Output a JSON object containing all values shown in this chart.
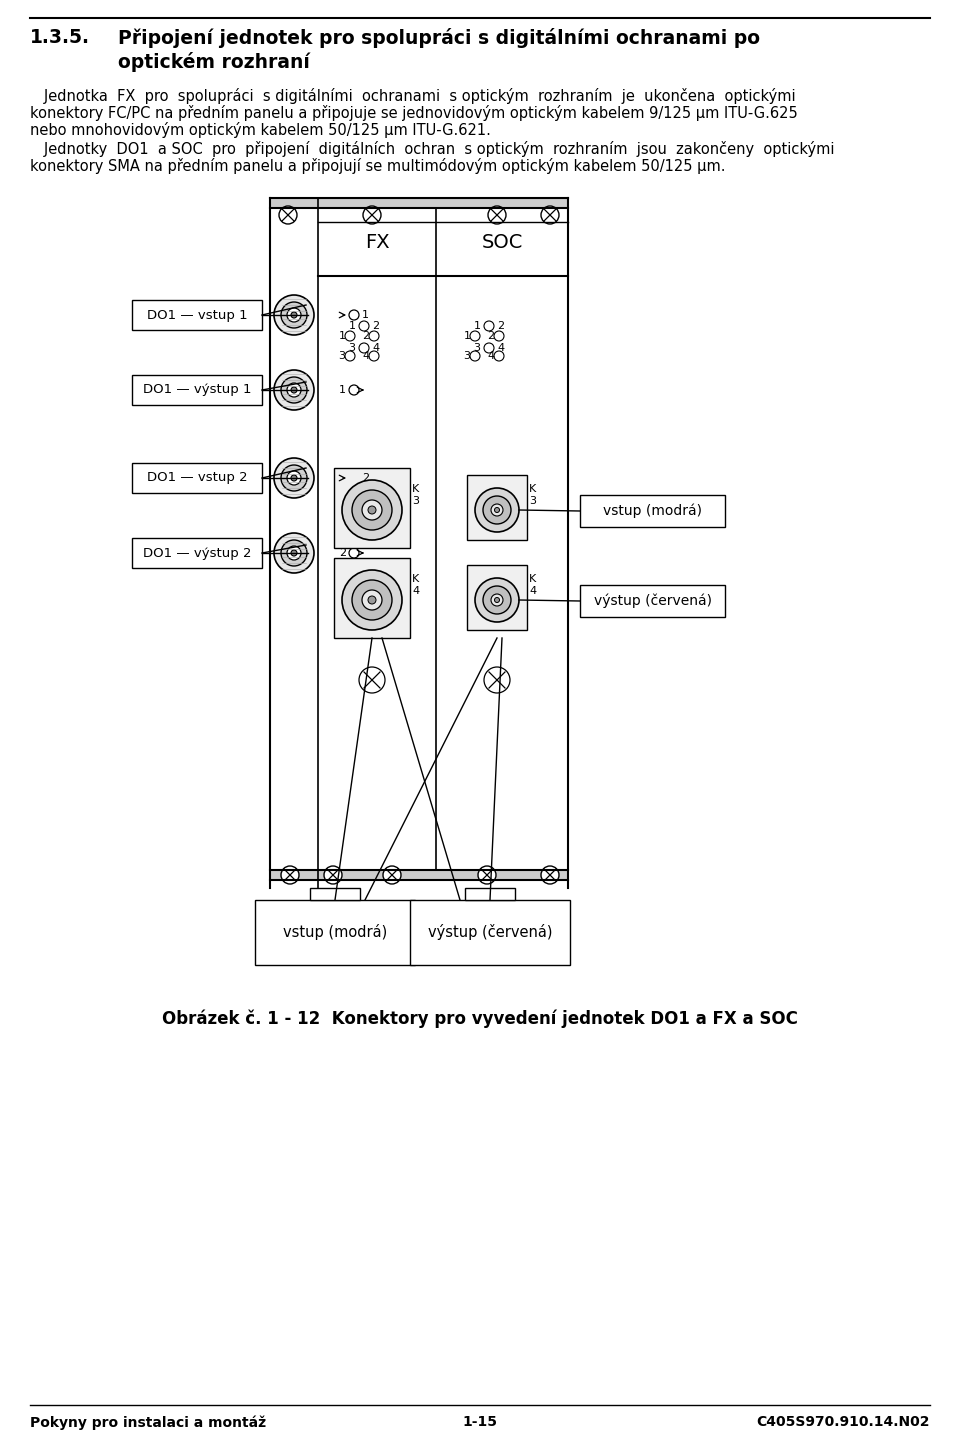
{
  "bg_color": "#ffffff",
  "text_color": "#000000",
  "line_color": "#000000",
  "heading_num": "1.3.5.",
  "heading_text1": "Připojení jednotek pro spolupráci s digitálními ochranami po",
  "heading_text2": "optickém rozhraní",
  "para1_lines": [
    "   Jednotka  FX  pro  spolupráci  s digitálními  ochranami  s optickým  rozhraním  je  ukončena  optickými",
    "konektory FC/PC na předním panelu a připojuje se jednovidovým optickým kabelem 9/125 μm ITU-G.625",
    "nebo mnohovidovým optickým kabelem 50/125 μm ITU-G.621."
  ],
  "para2_lines": [
    "   Jednotky  DO1  a SOC  pro  připojení  digitálních  ochran  s optickým  rozhraním  jsou  zakončeny  optickými",
    "konektory SMA na předním panelu a připojují se multimódovým optickým kabelem 50/125 μm."
  ],
  "label_DO1_vstup1": "DO1 — vstup 1",
  "label_DO1_vystup1": "DO1 — výstup 1",
  "label_DO1_vstup2": "DO1 — vstup 2",
  "label_DO1_vystup2": "DO1 — výstup 2",
  "label_vstup_modra": "vstup (modrá)",
  "label_vystup_cervena": "výstup (červená)",
  "label_vstup_modra_bottom": "vstup (modrá)",
  "label_vystup_cervena_bottom": "výstup (červená)",
  "label_FX": "FX",
  "label_SOC": "SOC",
  "caption": "Obrázek č. 1 - 12  Konektory pro vyvedení jednotek DO1 a FX a SOC",
  "footer_left": "Pokyny pro instalaci a montáž",
  "footer_center": "1-15",
  "footer_right": "C405S970.910.14.N02"
}
